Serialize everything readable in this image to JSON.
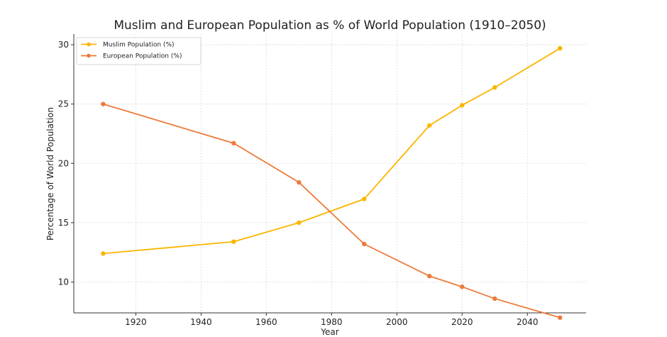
{
  "chart_data": {
    "type": "line",
    "title": "Muslim and European Population as % of World Population (1910–2050)",
    "xlabel": "Year",
    "ylabel": "Percentage of World Population",
    "x": [
      1910,
      1950,
      1970,
      1990,
      2010,
      2020,
      2030,
      2050
    ],
    "xlim": [
      1901,
      2058
    ],
    "ylim": [
      7.4,
      30.9
    ],
    "xticks": [
      1920,
      1940,
      1960,
      1980,
      2000,
      2020,
      2040
    ],
    "yticks": [
      10,
      15,
      20,
      25,
      30
    ],
    "grid": true,
    "legend_position": "top-left",
    "series": [
      {
        "name": "Muslim Population (%)",
        "values": [
          12.4,
          13.4,
          15.0,
          17.0,
          23.2,
          24.9,
          26.4,
          29.7
        ],
        "color": "#FBB500"
      },
      {
        "name": "European Population (%)",
        "values": [
          25.0,
          21.7,
          18.4,
          13.2,
          10.5,
          9.6,
          8.6,
          7.0
        ],
        "color": "#EE7A3A"
      }
    ]
  }
}
